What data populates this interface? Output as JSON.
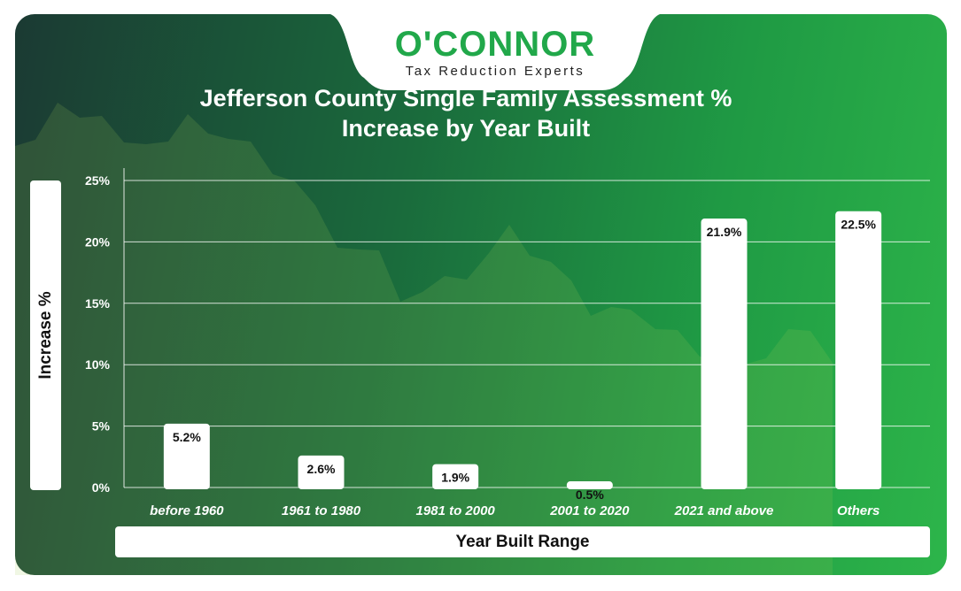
{
  "brand": {
    "name": "O'CONNOR",
    "tagline": "Tax Reduction Experts"
  },
  "colors": {
    "brand_green": "#21a84a",
    "bar": "#ffffff"
  },
  "chart_data": {
    "type": "bar",
    "title": "Jefferson County Single Family Assessment % Increase by Year Built",
    "title_lines": [
      "Jefferson County Single Family Assessment %",
      "Increase by Year Built"
    ],
    "xlabel": "Year Built Range",
    "ylabel": "Increase %",
    "categories": [
      "before 1960",
      "1961 to 1980",
      "1981 to 2000",
      "2001 to 2020",
      "2021 and above",
      "Others"
    ],
    "values": [
      5.2,
      2.6,
      1.9,
      0.5,
      21.9,
      22.5
    ],
    "value_labels": [
      "5.2%",
      "2.6%",
      "1.9%",
      "0.5%",
      "21.9%",
      "22.5%"
    ],
    "ylim": [
      0,
      25
    ],
    "yticks": [
      0,
      5,
      10,
      15,
      20,
      25
    ],
    "ytick_labels": [
      "0%",
      "5%",
      "10%",
      "15%",
      "20%",
      "25%"
    ],
    "grid": true,
    "legend": "none"
  }
}
